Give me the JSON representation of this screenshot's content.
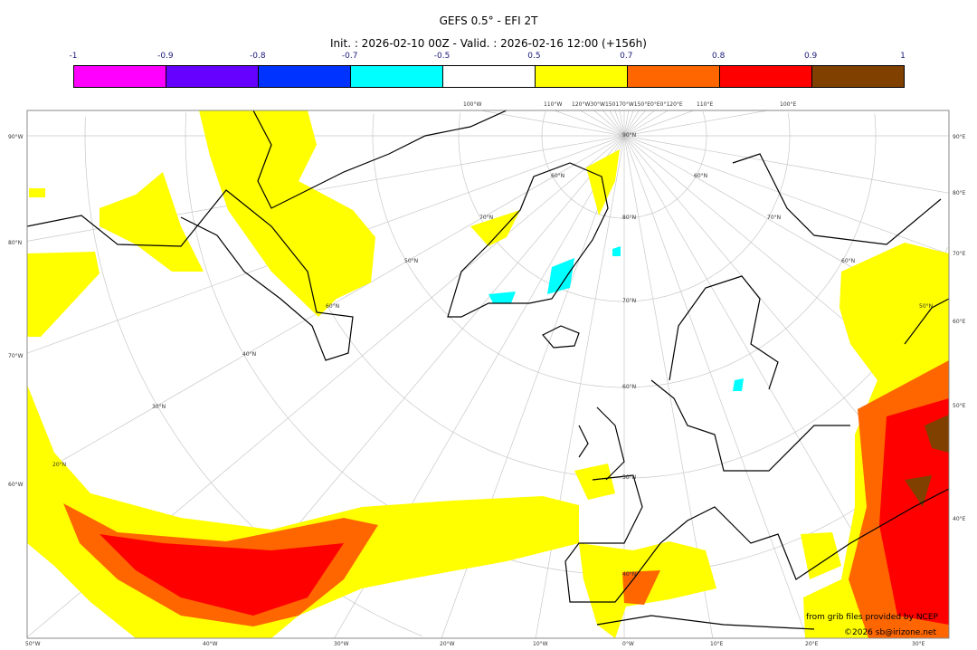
{
  "header": {
    "title": "GEFS 0.5° - EFI 2T",
    "subtitle": "Init. : 2026-02-10 00Z - Valid. : 2026-02-16 12:00 (+156h)"
  },
  "colorbar": {
    "ticks": [
      "-1",
      "-0.9",
      "-0.8",
      "-0.7",
      "-0.5",
      "0.5",
      "0.7",
      "0.8",
      "0.9",
      "1"
    ],
    "colors": [
      "#ff00ff",
      "#6600ff",
      "#0033ff",
      "#00ffff",
      "#ffffff",
      "#ffff00",
      "#ff6600",
      "#ff0000",
      "#804000"
    ]
  },
  "axes": {
    "top": [
      "100°W",
      "110°W",
      "120°W30°W150170°W150°E0°E0°120°E",
      "110°E",
      "100°E"
    ],
    "bottom": [
      "50°W",
      "40°W",
      "30°W",
      "20°W",
      "10°W",
      "0°W",
      "10°E",
      "20°E",
      "30°E"
    ],
    "left": [
      "90°W",
      "80°N",
      "70°W",
      "60°W"
    ],
    "right": [
      "90°E",
      "80°E",
      "70°E",
      "60°E",
      "50°E",
      "40°E"
    ],
    "inner_lat": [
      "90°N",
      "80°N",
      "70°N",
      "60°N",
      "50°N",
      "40°N",
      "60°N",
      "70°N",
      "60°N",
      "50°N",
      "40°N",
      "30°N",
      "20°N",
      "60°N",
      "70°N",
      "60°N",
      "50°N"
    ]
  },
  "credits": {
    "source": "from grib files provided by NCEP",
    "copyright": "©2026 sb@irizone.net"
  }
}
